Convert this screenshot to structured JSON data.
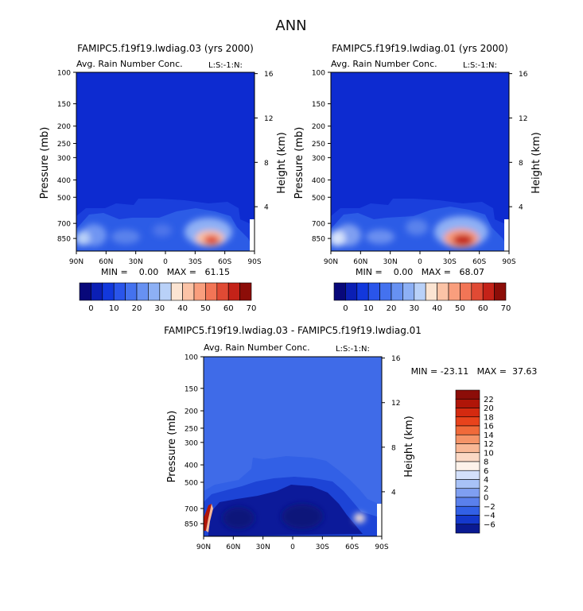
{
  "page_title": "ANN",
  "colors": {
    "field_base": "#0d2bd0",
    "diff_base": "#3f6be8",
    "diff_deep": "#0c1a9a"
  },
  "chart_data": [
    {
      "type": "heatmap",
      "title": "FAMIPC5.f19f19.lwdiag.03 (yrs 2000)",
      "subtitle": "Avg. Rain Number Conc.",
      "level_tag": "L:S:-1:N:",
      "xlabel": "",
      "ylabel_left": "Pressure (mb)",
      "ylabel_right": "Height (km)",
      "x_ticks": [
        "90N",
        "60N",
        "30N",
        "0",
        "30S",
        "60S",
        "90S"
      ],
      "x_range": [
        90,
        -90
      ],
      "y_ticks": [
        100,
        150,
        200,
        250,
        300,
        400,
        500,
        700,
        850
      ],
      "y_range": [
        1000,
        100
      ],
      "height_ticks": [
        4,
        8,
        12,
        16
      ],
      "stats_label": "MIN =    0.00   MAX =   61.15",
      "min": 0.0,
      "max": 61.15,
      "colorbar": {
        "orientation": "horizontal",
        "tick_labels": [
          "0",
          "10",
          "20",
          "30",
          "40",
          "50",
          "60",
          "70"
        ],
        "levels": [
          0,
          10,
          20,
          30,
          40,
          50,
          60,
          70
        ],
        "colors": [
          "#08087a",
          "#0b1fb4",
          "#1238dc",
          "#2a55ea",
          "#4472ef",
          "#6791f2",
          "#8db0f5",
          "#b9d1f8",
          "#fbe4d2",
          "#fbc3a6",
          "#f99e7d",
          "#f27556",
          "#e04a34",
          "#c42218",
          "#8c0d08"
        ]
      },
      "features": [
        {
          "lat": 85,
          "p": 840,
          "value": 38,
          "label": "north polar maximum"
        },
        {
          "lat": 55,
          "p": 810,
          "value": 22
        },
        {
          "lat": 40,
          "p": 780,
          "value": 22
        },
        {
          "lat": -42,
          "p": 850,
          "value": 61.15,
          "label": "southern mid-latitude maximum"
        },
        {
          "lat": 5,
          "p": 600,
          "value": 12
        }
      ]
    },
    {
      "type": "heatmap",
      "title": "FAMIPC5.f19f19.lwdiag.01 (yrs 2000)",
      "subtitle": "Avg. Rain Number Conc.",
      "level_tag": "L:S:-1:N:",
      "xlabel": "",
      "ylabel_left": "Pressure (mb)",
      "ylabel_right": "Height (km)",
      "x_ticks": [
        "90N",
        "60N",
        "30N",
        "0",
        "30S",
        "60S",
        "90S"
      ],
      "x_range": [
        90,
        -90
      ],
      "y_ticks": [
        100,
        150,
        200,
        250,
        300,
        400,
        500,
        700,
        850
      ],
      "y_range": [
        1000,
        100
      ],
      "height_ticks": [
        4,
        8,
        12,
        16
      ],
      "stats_label": "MIN =    0.00   MAX =   68.07",
      "min": 0.0,
      "max": 68.07,
      "colorbar": {
        "orientation": "horizontal",
        "tick_labels": [
          "0",
          "10",
          "20",
          "30",
          "40",
          "50",
          "60",
          "70"
        ],
        "levels": [
          0,
          10,
          20,
          30,
          40,
          50,
          60,
          70
        ],
        "colors": [
          "#08087a",
          "#0b1fb4",
          "#1238dc",
          "#2a55ea",
          "#4472ef",
          "#6791f2",
          "#8db0f5",
          "#b9d1f8",
          "#fbe4d2",
          "#fbc3a6",
          "#f99e7d",
          "#f27556",
          "#e04a34",
          "#c42218",
          "#8c0d08"
        ]
      },
      "features": [
        {
          "lat": 85,
          "p": 840,
          "value": 42,
          "label": "north polar maximum"
        },
        {
          "lat": 55,
          "p": 810,
          "value": 24
        },
        {
          "lat": 40,
          "p": 780,
          "value": 24
        },
        {
          "lat": -42,
          "p": 850,
          "value": 68.07,
          "label": "southern mid-latitude maximum"
        },
        {
          "lat": 5,
          "p": 600,
          "value": 14
        }
      ]
    },
    {
      "type": "heatmap",
      "title": "FAMIPC5.f19f19.lwdiag.03 - FAMIPC5.f19f19.lwdiag.01",
      "subtitle": "Avg. Rain Number Conc.",
      "level_tag": "L:S:-1:N:",
      "xlabel": "",
      "ylabel_left": "Pressure (mb)",
      "ylabel_right": "Height (km)",
      "x_ticks": [
        "90N",
        "60N",
        "30N",
        "0",
        "30S",
        "60S",
        "90S"
      ],
      "x_range": [
        90,
        -90
      ],
      "y_ticks": [
        100,
        150,
        200,
        250,
        300,
        400,
        500,
        700,
        850
      ],
      "y_range": [
        1000,
        100
      ],
      "height_ticks": [
        4,
        8,
        12,
        16
      ],
      "stats_label": "MIN = -23.11   MAX =  37.63",
      "min": -23.11,
      "max": 37.63,
      "colorbar": {
        "orientation": "vertical",
        "tick_labels": [
          "22",
          "20",
          "18",
          "16",
          "14",
          "12",
          "10",
          "8",
          "6",
          "4",
          "2",
          "0",
          "−2",
          "−4",
          "−6"
        ],
        "levels": [
          22,
          20,
          18,
          16,
          14,
          12,
          10,
          8,
          6,
          4,
          2,
          0,
          -2,
          -4,
          -6
        ],
        "colors": [
          "#8c0d08",
          "#b01508",
          "#d42a10",
          "#e8431c",
          "#f06a3a",
          "#f59468",
          "#f9b896",
          "#fbd8c4",
          "#fdf2ea",
          "#d3e0fb",
          "#a8c2f7",
          "#7f9ff1",
          "#5a80ec",
          "#3260e6",
          "#1438cc",
          "#0a1a92"
        ]
      },
      "features": [
        {
          "lat": 88,
          "p": 850,
          "value": 37.63,
          "label": "polar positive difference"
        },
        {
          "lat": -62,
          "p": 800,
          "value": 9,
          "label": "positive patch near 60S"
        },
        {
          "lat": 20,
          "p": 780,
          "value": -6,
          "label": "lower-troposphere negative band"
        }
      ]
    }
  ]
}
